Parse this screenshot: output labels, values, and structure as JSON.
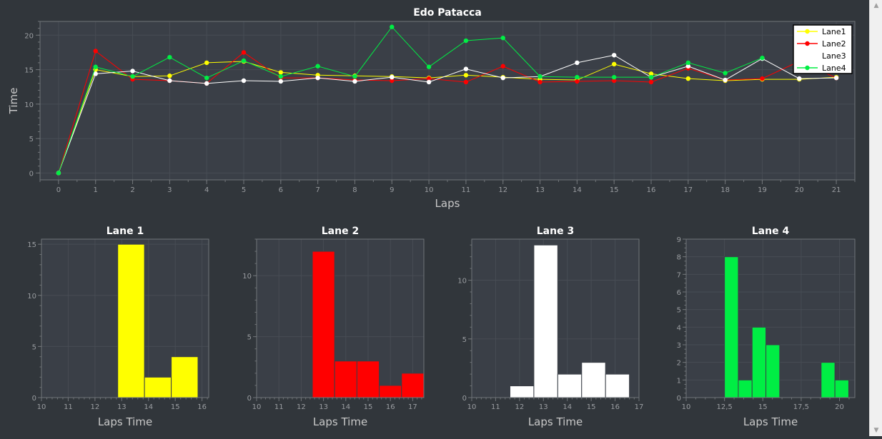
{
  "chart_data": [
    {
      "type": "line",
      "title": "Edo Patacca",
      "xlabel": "Laps",
      "ylabel": "Time",
      "xlim": [
        -0.5,
        21.5
      ],
      "ylim": [
        -1,
        22
      ],
      "xticks": [
        0,
        1,
        2,
        3,
        4,
        5,
        6,
        7,
        8,
        9,
        10,
        11,
        12,
        13,
        14,
        15,
        16,
        17,
        18,
        19,
        20,
        21
      ],
      "yticks": [
        0,
        5,
        10,
        15,
        20
      ],
      "grid": true,
      "legend": "top-right",
      "x": [
        0,
        1,
        2,
        3,
        4,
        5,
        6,
        7,
        8,
        9,
        10,
        11,
        12,
        13,
        14,
        15,
        16,
        17,
        18,
        19,
        20,
        21
      ],
      "series": [
        {
          "name": "Lane1",
          "color": "#ffff00",
          "values": [
            0,
            15,
            14,
            14.1,
            16,
            16.2,
            14.6,
            14.2,
            14.1,
            14,
            13.8,
            14.2,
            13.9,
            13.6,
            13.5,
            15.8,
            14.4,
            13.7,
            13.4,
            13.6,
            13.6,
            13.9
          ]
        },
        {
          "name": "Lane2",
          "color": "#ff0000",
          "values": [
            0,
            17.7,
            13.6,
            13.4,
            13,
            17.5,
            13.8,
            13.8,
            13.5,
            13.4,
            13.7,
            13.2,
            15.5,
            13.2,
            13.3,
            13.4,
            13.2,
            15.2,
            13.5,
            13.7,
            16.2,
            13.8
          ]
        },
        {
          "name": "Lane3",
          "color": "#ffffff",
          "values": [
            0,
            14.4,
            14.8,
            13.4,
            13,
            13.4,
            13.3,
            13.8,
            13.3,
            13.9,
            13.2,
            15.1,
            13.8,
            14,
            16,
            17.1,
            13.9,
            15.5,
            13.5,
            16.6,
            13.7,
            13.8
          ]
        },
        {
          "name": "Lane4",
          "color": "#00ee44",
          "values": [
            0,
            15.4,
            14,
            16.8,
            13.8,
            16.3,
            14,
            15.5,
            14,
            21.2,
            15.4,
            19.2,
            19.6,
            14,
            13.9,
            13.9,
            13.9,
            16,
            14.5,
            16.7,
            null,
            null
          ]
        }
      ]
    },
    {
      "type": "bar",
      "title": "Lane 1",
      "xlabel": "Laps Time",
      "color": "#ffff00",
      "xlim": [
        10,
        16.25
      ],
      "ylim": [
        0,
        15.5
      ],
      "xticks": [
        {
          "v": 10,
          "l": "10"
        },
        {
          "v": 11,
          "l": "11"
        },
        {
          "v": 12,
          "l": "12"
        },
        {
          "v": 13,
          "l": "13"
        },
        {
          "v": 14,
          "l": "14"
        },
        {
          "v": 15,
          "l": "15"
        },
        {
          "v": 16,
          "l": "16"
        }
      ],
      "yticks": [
        {
          "v": 0,
          "l": "0"
        },
        {
          "v": 5,
          "l": "5"
        },
        {
          "v": 10,
          "l": "10"
        },
        {
          "v": 15,
          "l": "15"
        }
      ],
      "minor_per_major": 5,
      "bins": [
        {
          "x0": 12.85,
          "x1": 13.85,
          "count": 15
        },
        {
          "x0": 13.85,
          "x1": 14.85,
          "count": 2
        },
        {
          "x0": 14.85,
          "x1": 15.85,
          "count": 4
        }
      ]
    },
    {
      "type": "bar",
      "title": "Lane 2",
      "xlabel": "Laps Time",
      "color": "#ff0000",
      "xlim": [
        10,
        17.5
      ],
      "ylim": [
        0,
        13
      ],
      "xticks": [
        {
          "v": 10,
          "l": "10"
        },
        {
          "v": 11,
          "l": "11"
        },
        {
          "v": 12,
          "l": "12"
        },
        {
          "v": 13,
          "l": "13"
        },
        {
          "v": 14,
          "l": "14"
        },
        {
          "v": 15,
          "l": "15"
        },
        {
          "v": 16,
          "l": "16"
        },
        {
          "v": 17,
          "l": "17"
        }
      ],
      "yticks": [
        {
          "v": 0,
          "l": "0"
        },
        {
          "v": 5,
          "l": "5"
        },
        {
          "v": 10,
          "l": "10"
        }
      ],
      "minor_per_major": 5,
      "bins": [
        {
          "x0": 12.5,
          "x1": 13.5,
          "count": 12
        },
        {
          "x0": 13.5,
          "x1": 14.5,
          "count": 3
        },
        {
          "x0": 14.5,
          "x1": 15.5,
          "count": 3
        },
        {
          "x0": 15.5,
          "x1": 16.5,
          "count": 1
        },
        {
          "x0": 16.5,
          "x1": 17.5,
          "count": 2
        }
      ]
    },
    {
      "type": "bar",
      "title": "Lane 3",
      "xlabel": "Laps Time",
      "color": "#ffffff",
      "xlim": [
        10,
        17
      ],
      "ylim": [
        0,
        13.5
      ],
      "xticks": [
        {
          "v": 10,
          "l": "10"
        },
        {
          "v": 11,
          "l": "11"
        },
        {
          "v": 12,
          "l": "12"
        },
        {
          "v": 13,
          "l": "13"
        },
        {
          "v": 14,
          "l": "14"
        },
        {
          "v": 15,
          "l": "15"
        },
        {
          "v": 16,
          "l": "16"
        },
        {
          "v": 17,
          "l": "17"
        }
      ],
      "yticks": [
        {
          "v": 0,
          "l": "0"
        },
        {
          "v": 5,
          "l": "5"
        },
        {
          "v": 10,
          "l": "10"
        }
      ],
      "minor_per_major": 5,
      "bins": [
        {
          "x0": 11.6,
          "x1": 12.6,
          "count": 1
        },
        {
          "x0": 12.6,
          "x1": 13.6,
          "count": 13
        },
        {
          "x0": 13.6,
          "x1": 14.6,
          "count": 2
        },
        {
          "x0": 14.6,
          "x1": 15.6,
          "count": 3
        },
        {
          "x0": 15.6,
          "x1": 16.6,
          "count": 2
        }
      ]
    },
    {
      "type": "bar",
      "title": "Lane 4",
      "xlabel": "Laps Time",
      "color": "#00ee44",
      "xlim": [
        10,
        21
      ],
      "ylim": [
        0,
        9
      ],
      "xticks": [
        {
          "v": 10,
          "l": "10"
        },
        {
          "v": 12.5,
          "l": "12,5"
        },
        {
          "v": 15,
          "l": "15"
        },
        {
          "v": 17.5,
          "l": "17,5"
        },
        {
          "v": 20,
          "l": "20"
        }
      ],
      "yticks": [
        {
          "v": 0,
          "l": "0"
        },
        {
          "v": 1,
          "l": "1"
        },
        {
          "v": 2,
          "l": "2"
        },
        {
          "v": 3,
          "l": "3"
        },
        {
          "v": 4,
          "l": "4"
        },
        {
          "v": 5,
          "l": "5"
        },
        {
          "v": 6,
          "l": "6"
        },
        {
          "v": 7,
          "l": "7"
        },
        {
          "v": 8,
          "l": "8"
        },
        {
          "v": 9,
          "l": "9"
        }
      ],
      "minor_per_major": 4,
      "bins": [
        {
          "x0": 12.5,
          "x1": 13.4,
          "count": 8
        },
        {
          "x0": 13.4,
          "x1": 14.3,
          "count": 1
        },
        {
          "x0": 14.3,
          "x1": 15.2,
          "count": 4
        },
        {
          "x0": 15.2,
          "x1": 16.1,
          "count": 3
        },
        {
          "x0": 16.1,
          "x1": 17,
          "count": 0
        },
        {
          "x0": 17,
          "x1": 17.9,
          "count": 0
        },
        {
          "x0": 17.9,
          "x1": 18.8,
          "count": 0
        },
        {
          "x0": 18.8,
          "x1": 19.7,
          "count": 2
        },
        {
          "x0": 19.7,
          "x1": 20.6,
          "count": 1
        }
      ]
    }
  ],
  "ui": {
    "scroll_up_icon": "triangle-up",
    "scroll_down_icon": "triangle-down",
    "scroll_up_glyph": "▲",
    "scroll_down_glyph": "▼"
  }
}
